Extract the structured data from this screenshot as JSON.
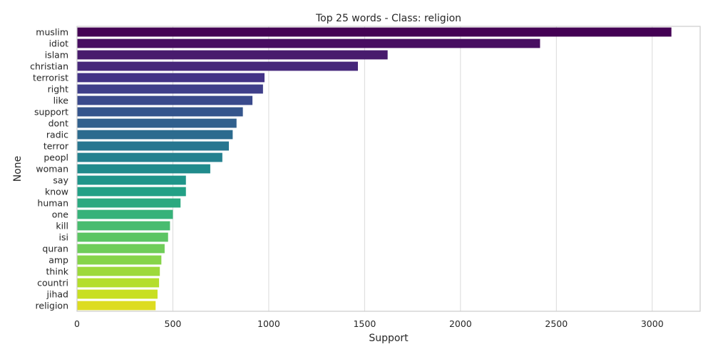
{
  "chart_data": {
    "type": "bar",
    "orientation": "horizontal",
    "title": "Top 25 words - Class: religion",
    "xlabel": "Support",
    "ylabel": "None",
    "xlim": [
      0,
      3250
    ],
    "xticks": [
      0,
      500,
      1000,
      1500,
      2000,
      2500,
      3000
    ],
    "grid": "vertical",
    "categories": [
      "muslim",
      "idiot",
      "islam",
      "christian",
      "terrorist",
      "right",
      "like",
      "support",
      "dont",
      "radic",
      "terror",
      "peopl",
      "woman",
      "say",
      "know",
      "human",
      "one",
      "kill",
      "isi",
      "quran",
      "amp",
      "think",
      "countri",
      "jihad",
      "religion"
    ],
    "values": [
      3100,
      2415,
      1620,
      1465,
      978,
      970,
      915,
      865,
      832,
      812,
      792,
      758,
      695,
      568,
      568,
      540,
      500,
      485,
      475,
      457,
      440,
      432,
      428,
      420,
      410
    ],
    "colors": [
      "#440154",
      "#470e61",
      "#481b6d",
      "#46277a",
      "#433386",
      "#3f3f8a",
      "#3a4a8c",
      "#35558c",
      "#31608d",
      "#2c6b8e",
      "#287690",
      "#24818f",
      "#208b8c",
      "#1f958a",
      "#23a086",
      "#2ba980",
      "#36b27a",
      "#48bc6f",
      "#5bc563",
      "#6fcd59",
      "#86d449",
      "#9dd93b",
      "#b4de2c",
      "#c8df22",
      "#dddc21"
    ]
  }
}
